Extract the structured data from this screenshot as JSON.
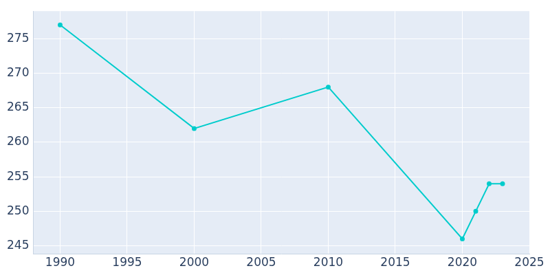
{
  "chart_data": {
    "type": "line",
    "x": [
      1990,
      2000,
      2010,
      2020,
      2021,
      2022,
      2023
    ],
    "values": [
      277,
      262,
      268,
      246,
      250,
      254,
      254
    ],
    "color": "#00cccc",
    "marker": "circle",
    "xlim": [
      1988,
      2025
    ],
    "xticks": [
      1990,
      1995,
      2000,
      2005,
      2010,
      2015,
      2020,
      2025
    ],
    "ylim": [
      243.8,
      279
    ],
    "yticks": [
      245,
      250,
      255,
      260,
      265,
      270,
      275
    ],
    "grid": true
  }
}
